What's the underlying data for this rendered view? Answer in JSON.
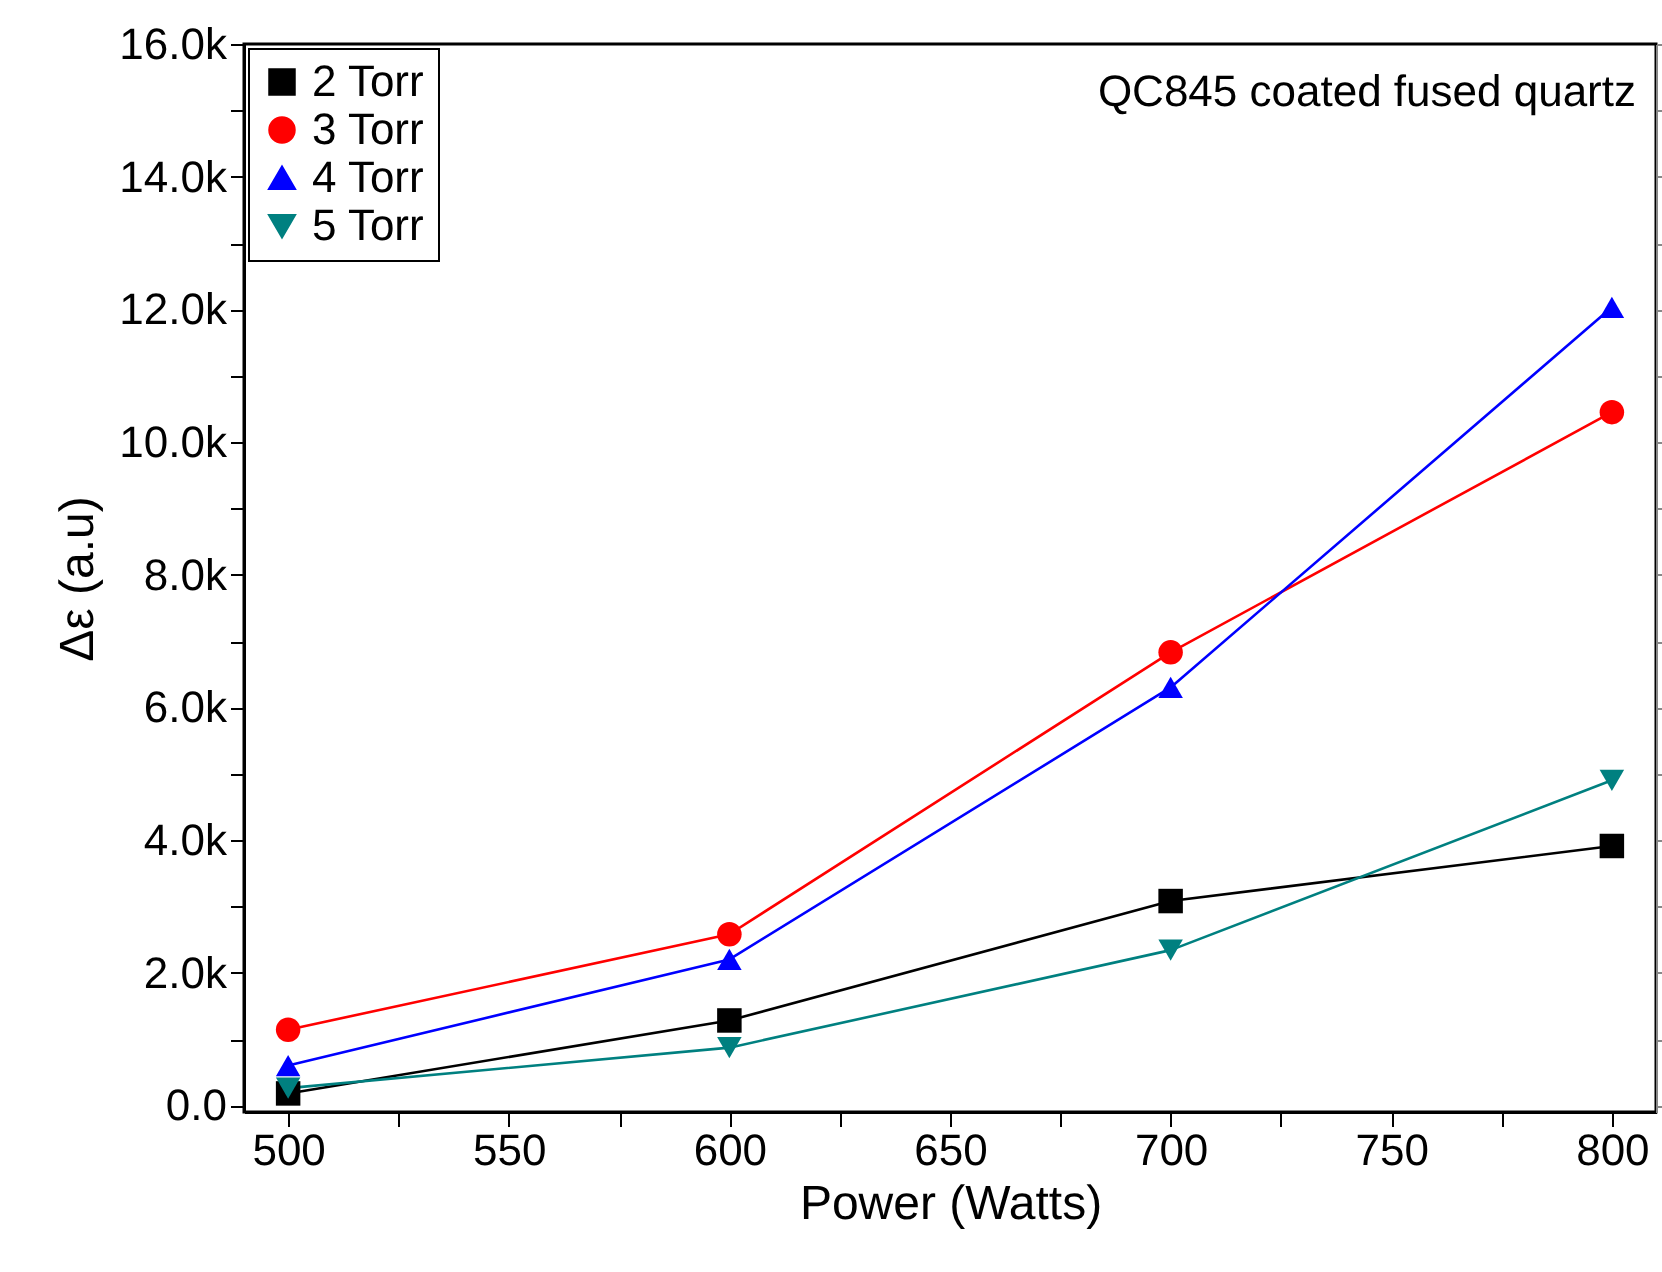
{
  "chart_data": {
    "type": "line",
    "xlabel": "Power (Watts)",
    "ylabel": "Δε (a.u)",
    "annotations": [
      "QC845 coated fused quartz"
    ],
    "x": [
      500,
      600,
      700,
      800
    ],
    "series": [
      {
        "name": "2 Torr",
        "color": "#000000",
        "marker": "square",
        "values": [
          180,
          1280,
          3080,
          3910
        ]
      },
      {
        "name": "3 Torr",
        "color": "#ff0000",
        "marker": "circle",
        "values": [
          1140,
          2580,
          6830,
          10450
        ]
      },
      {
        "name": "4 Torr",
        "color": "#0000ff",
        "marker": "triangle",
        "values": [
          600,
          2200,
          6300,
          12030
        ]
      },
      {
        "name": "5 Torr",
        "color": "#008080",
        "marker": "triangle-down",
        "values": [
          260,
          870,
          2340,
          4900
        ]
      }
    ],
    "xlim": [
      490,
      810
    ],
    "xticks": [
      500,
      {
        "value": 525,
        "label": null
      },
      550,
      {
        "value": 575,
        "label": null
      },
      600,
      {
        "value": 625,
        "label": null
      },
      650,
      {
        "value": 675,
        "label": null
      },
      700,
      {
        "value": 725,
        "label": null
      },
      750,
      {
        "value": 775,
        "label": null
      },
      800
    ],
    "ylim": [
      -100,
      16000
    ],
    "yticks": [
      {
        "value": 0,
        "label": "0.0"
      },
      {
        "value": 1000,
        "label": null
      },
      {
        "value": 2000,
        "label": "2.0k"
      },
      {
        "value": 3000,
        "label": null
      },
      {
        "value": 4000,
        "label": "4.0k"
      },
      {
        "value": 5000,
        "label": null
      },
      {
        "value": 6000,
        "label": "6.0k"
      },
      {
        "value": 7000,
        "label": null
      },
      {
        "value": 8000,
        "label": "8.0k"
      },
      {
        "value": 9000,
        "label": null
      },
      {
        "value": 10000,
        "label": "10.0k"
      },
      {
        "value": 11000,
        "label": null
      },
      {
        "value": 12000,
        "label": "12.0k"
      },
      {
        "value": 13000,
        "label": null
      },
      {
        "value": 14000,
        "label": "14.0k"
      },
      {
        "value": 15000,
        "label": null
      },
      {
        "value": 16000,
        "label": "16.0k"
      }
    ],
    "grid": false,
    "legend": "top left",
    "line_style": "solid"
  }
}
